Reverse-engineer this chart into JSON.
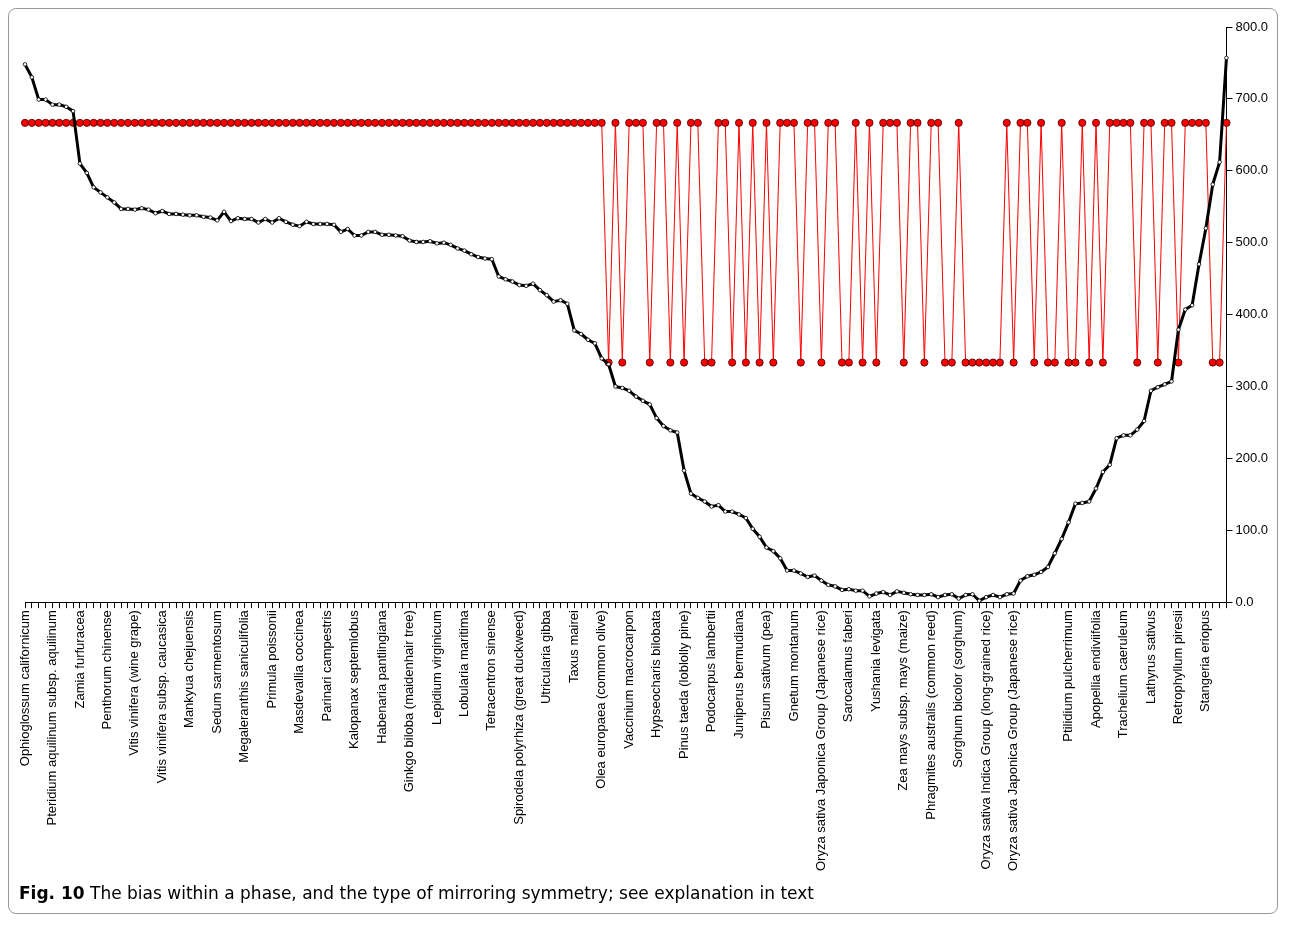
{
  "chart_data": {
    "type": "line",
    "categories": [
      "Ophioglossum californicum",
      null,
      null,
      null,
      "Pteridium aquilinum subsp. aquilinum",
      null,
      null,
      null,
      "Zamia furfuracea",
      null,
      null,
      null,
      "Penthorum chinense",
      null,
      null,
      null,
      "Vitis vinifera (wine grape)",
      null,
      null,
      null,
      "Vitis vinifera subsp. caucasica",
      null,
      null,
      null,
      "Mankyua chejuensis",
      null,
      null,
      null,
      "Sedum sarmentosum",
      null,
      null,
      null,
      "Megaleranthis saniculifolia",
      null,
      null,
      null,
      "Primula poissonii",
      null,
      null,
      null,
      "Masdevallia coccinea",
      null,
      null,
      null,
      "Parinari campestris",
      null,
      null,
      null,
      "Kalopanax septemlobus",
      null,
      null,
      null,
      "Habenaria pantlingiana",
      null,
      null,
      null,
      "Ginkgo biloba (maidenhair tree)",
      null,
      null,
      null,
      "Lepidium virginicum",
      null,
      null,
      null,
      "Lobularia maritima",
      null,
      null,
      null,
      "Tetracentron sinense",
      null,
      null,
      null,
      "Spirodela polyrhiza (great duckweed)",
      null,
      null,
      null,
      "Utricularia gibba",
      null,
      null,
      null,
      "Taxus mairei",
      null,
      null,
      null,
      "Olea europaea (common olive)",
      null,
      null,
      null,
      "Vaccinium macrocarpon",
      null,
      null,
      null,
      "Hypseocharis bilobata",
      null,
      null,
      null,
      "Pinus taeda (loblolly pine)",
      null,
      null,
      null,
      "Podocarpus lambertii",
      null,
      null,
      null,
      "Juniperus bermudiana",
      null,
      null,
      null,
      "Pisum sativum (pea)",
      null,
      null,
      null,
      "Gnetum montanum",
      null,
      null,
      null,
      "Oryza sativa Japonica Group (Japanese rice)",
      null,
      null,
      null,
      "Sarocalamus faberi",
      null,
      null,
      null,
      "Yushania levigata",
      null,
      null,
      null,
      "Zea mays subsp. mays (maize)",
      null,
      null,
      null,
      "Phragmites australis (common reed)",
      null,
      null,
      null,
      "Sorghum bicolor (sorghum)",
      null,
      null,
      null,
      "Oryza sativa Indica Group (long-grained rice)",
      null,
      null,
      null,
      "Oryza sativa Japonica Group (Japanese rice)",
      null,
      null,
      null,
      null,
      null,
      null,
      null,
      "Ptilidium pulcherrimum",
      null,
      null,
      null,
      "Apopellia endiviifolia",
      null,
      null,
      null,
      "Trachelium caeruleum",
      null,
      null,
      null,
      "Lathyrus sativus",
      null,
      null,
      null,
      "Retrophyllum piresii",
      null,
      null,
      null,
      "Stangeria eriopus",
      null,
      null,
      null
    ],
    "series": [
      {
        "color": "#000000",
        "values": [
          748,
          730,
          699,
          699,
          692,
          692,
          689,
          683,
          610,
          597,
          577,
          570,
          563,
          556,
          547,
          547,
          546,
          548,
          546,
          541,
          544,
          540,
          540,
          539,
          538,
          538,
          536,
          535,
          531,
          543,
          530,
          534,
          533,
          533,
          528,
          533,
          528,
          534,
          529,
          525,
          523,
          529,
          526,
          526,
          526,
          525,
          515,
          519,
          510,
          510,
          515,
          515,
          511,
          511,
          510,
          509,
          503,
          501,
          501,
          502,
          499,
          500,
          497,
          492,
          489,
          484,
          480,
          478,
          477,
          453,
          449,
          446,
          441,
          440,
          443,
          434,
          427,
          418,
          420,
          415,
          378,
          373,
          365,
          360,
          339,
          331,
          300,
          298,
          294,
          286,
          280,
          275,
          256,
          245,
          239,
          236,
          183,
          151,
          145,
          140,
          133,
          135,
          126,
          126,
          122,
          117,
          102,
          91,
          76,
          71,
          61,
          44,
          44,
          40,
          35,
          37,
          30,
          24,
          22,
          17,
          18,
          16,
          16,
          8,
          12,
          14,
          10,
          15,
          13,
          11,
          10,
          10,
          11,
          7,
          10,
          11,
          5,
          10,
          11,
          2,
          7,
          10,
          7,
          11,
          12,
          30,
          36,
          38,
          42,
          49,
          68,
          88,
          111,
          137,
          138,
          140,
          158,
          181,
          191,
          228,
          232,
          232,
          240,
          252,
          294,
          299,
          303,
          307,
          379,
          407,
          413,
          470,
          520,
          581,
          612,
          757
        ]
      },
      {
        "color": "#ff0000",
        "values": [
          666.7,
          666.7,
          666.7,
          666.7,
          666.7,
          666.7,
          666.7,
          666.7,
          666.7,
          666.7,
          666.7,
          666.7,
          666.7,
          666.7,
          666.7,
          666.7,
          666.7,
          666.7,
          666.7,
          666.7,
          666.7,
          666.7,
          666.7,
          666.7,
          666.7,
          666.7,
          666.7,
          666.7,
          666.7,
          666.7,
          666.7,
          666.7,
          666.7,
          666.7,
          666.7,
          666.7,
          666.7,
          666.7,
          666.7,
          666.7,
          666.7,
          666.7,
          666.7,
          666.7,
          666.7,
          666.7,
          666.7,
          666.7,
          666.7,
          666.7,
          666.7,
          666.7,
          666.7,
          666.7,
          666.7,
          666.7,
          666.7,
          666.7,
          666.7,
          666.7,
          666.7,
          666.7,
          666.7,
          666.7,
          666.7,
          666.7,
          666.7,
          666.7,
          666.7,
          666.7,
          666.7,
          666.7,
          666.7,
          666.7,
          666.7,
          666.7,
          666.7,
          666.7,
          666.7,
          666.7,
          666.7,
          666.7,
          666.7,
          666.7,
          666.7,
          333.3,
          666.7,
          333.3,
          666.7,
          666.7,
          666.7,
          333.3,
          666.7,
          666.7,
          333.3,
          666.7,
          333.3,
          666.7,
          666.7,
          333.3,
          333.3,
          666.7,
          666.7,
          333.3,
          666.7,
          333.3,
          666.7,
          333.3,
          666.7,
          333.3,
          666.7,
          666.7,
          666.7,
          333.3,
          666.7,
          666.7,
          333.3,
          666.7,
          666.7,
          333.3,
          333.3,
          666.7,
          333.3,
          666.7,
          333.3,
          666.7,
          666.7,
          666.7,
          333.3,
          666.7,
          666.7,
          333.3,
          666.7,
          666.7,
          333.3,
          333.3,
          666.7,
          333.3,
          333.3,
          333.3,
          333.3,
          333.3,
          333.3,
          666.7,
          333.3,
          666.7,
          666.7,
          333.3,
          666.7,
          333.3,
          333.3,
          666.7,
          333.3,
          333.3,
          666.7,
          333.3,
          666.7,
          333.3,
          666.7,
          666.7,
          666.7,
          666.7,
          333.3,
          666.7,
          666.7,
          333.3,
          666.7,
          666.7,
          333.3,
          666.7,
          666.7,
          666.7,
          666.7,
          333.3,
          333.3,
          666.7
        ]
      }
    ],
    "ylim": [
      0,
      800
    ],
    "yticks": [
      {
        "value": 0,
        "label": "0.0"
      },
      {
        "value": 100,
        "label": "100.0"
      },
      {
        "value": 200,
        "label": "200.0"
      },
      {
        "value": 300,
        "label": "300.0"
      },
      {
        "value": 400,
        "label": "400.0"
      },
      {
        "value": 500,
        "label": "500.0"
      },
      {
        "value": 600,
        "label": "600.0"
      },
      {
        "value": 700,
        "label": "700.0"
      },
      {
        "value": 800,
        "label": "800.0"
      }
    ],
    "grid": false,
    "legend": false,
    "marker": "circle",
    "line_style": "solid",
    "annotations": [
      "Fig. 10 The bias within a phase, and the type of mirroring symmetry; see explanation in text"
    ]
  }
}
